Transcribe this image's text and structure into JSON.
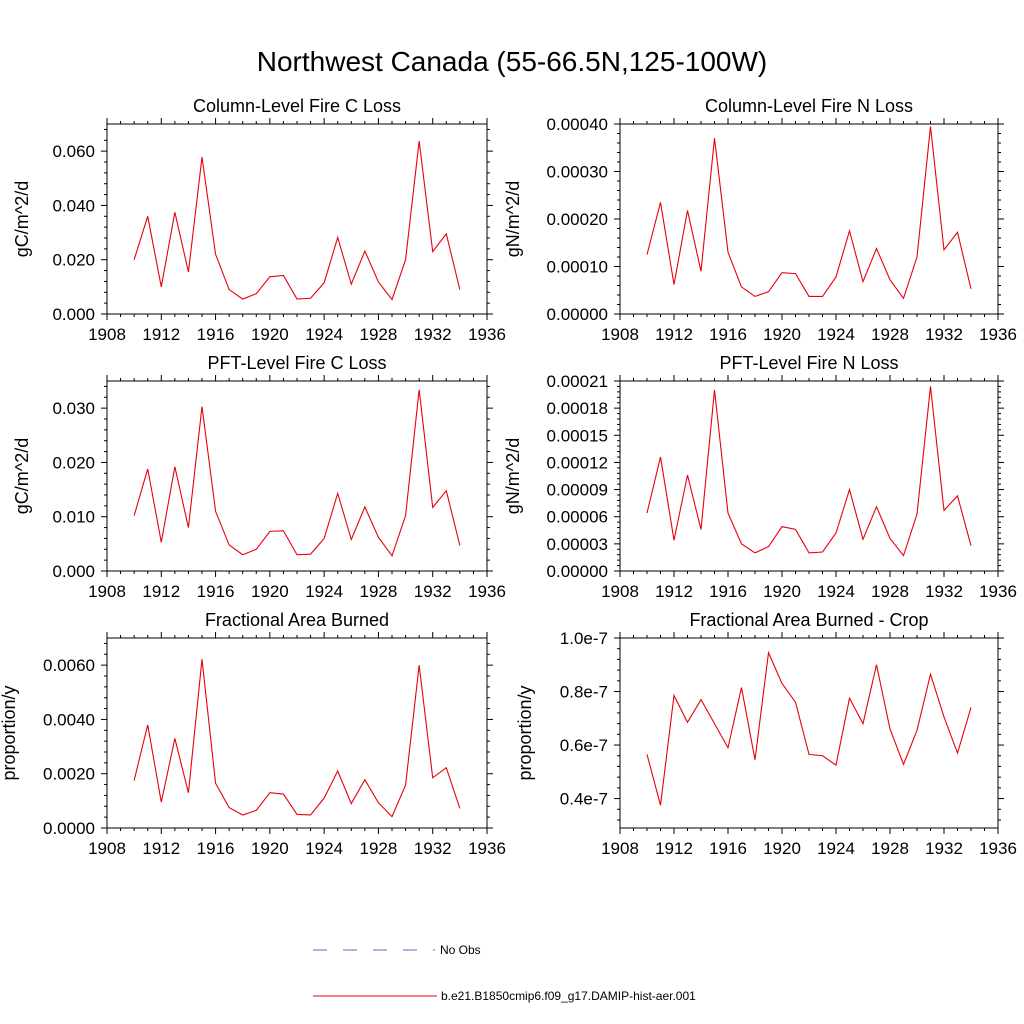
{
  "figure": {
    "title": "Northwest Canada (55-66.5N,125-100W)"
  },
  "legend": {
    "entries": [
      {
        "label": "No Obs",
        "style": "dashed",
        "color": "#5a6ac0"
      },
      {
        "label": "b.e21.B1850cmip6.f09_g17.DAMIP-hist-aer.001",
        "style": "solid",
        "color": "#e8000b"
      }
    ]
  },
  "chart_data": [
    {
      "type": "line",
      "title": "Column-Level Fire C Loss",
      "ylabel": "gC/m^2/d",
      "xlim": [
        1908,
        1936
      ],
      "ylim": [
        0,
        0.07
      ],
      "yticks": [
        0.0,
        0.02,
        0.04,
        0.06
      ],
      "ytick_labels": [
        "0.000",
        "0.020",
        "0.040",
        "0.060"
      ],
      "xticks": [
        1908,
        1912,
        1916,
        1920,
        1924,
        1928,
        1932,
        1936
      ],
      "xtick_labels": [
        "1908",
        "1912",
        "1916",
        "1920",
        "1924",
        "1928",
        "1932",
        "1936"
      ],
      "line_color": "#e8000b",
      "x": [
        1910,
        1911,
        1912,
        1913,
        1914,
        1915,
        1916,
        1917,
        1918,
        1919,
        1920,
        1921,
        1922,
        1923,
        1924,
        1925,
        1926,
        1927,
        1928,
        1929,
        1930,
        1931,
        1932,
        1933,
        1934
      ],
      "values": [
        0.02,
        0.036,
        0.01,
        0.0375,
        0.0155,
        0.0578,
        0.022,
        0.009,
        0.0055,
        0.0075,
        0.0137,
        0.0142,
        0.0055,
        0.0058,
        0.0115,
        0.0282,
        0.011,
        0.0232,
        0.0118,
        0.0053,
        0.02,
        0.0637,
        0.023,
        0.0295,
        0.009
      ]
    },
    {
      "type": "line",
      "title": "Column-Level Fire N Loss",
      "ylabel": "gN/m^2/d",
      "xlim": [
        1908,
        1936
      ],
      "ylim": [
        0,
        0.0004
      ],
      "yticks": [
        0.0,
        0.0001,
        0.0002,
        0.0003,
        0.0004
      ],
      "ytick_labels": [
        "0.00000",
        "0.00010",
        "0.00020",
        "0.00030",
        "0.00040"
      ],
      "xticks": [
        1908,
        1912,
        1916,
        1920,
        1924,
        1928,
        1932,
        1936
      ],
      "xtick_labels": [
        "1908",
        "1912",
        "1916",
        "1920",
        "1924",
        "1928",
        "1932",
        "1936"
      ],
      "line_color": "#e8000b",
      "x": [
        1910,
        1911,
        1912,
        1913,
        1914,
        1915,
        1916,
        1917,
        1918,
        1919,
        1920,
        1921,
        1922,
        1923,
        1924,
        1925,
        1926,
        1927,
        1928,
        1929,
        1930,
        1931,
        1932,
        1933,
        1934
      ],
      "values": [
        0.000125,
        0.000235,
        6.2e-05,
        0.000218,
        9e-05,
        0.00037,
        0.00013,
        5.7e-05,
        3.7e-05,
        4.7e-05,
        8.7e-05,
        8.5e-05,
        3.7e-05,
        3.7e-05,
        7.8e-05,
        0.000175,
        6.8e-05,
        0.000138,
        7.2e-05,
        3.3e-05,
        0.00012,
        0.000395,
        0.000135,
        0.000172,
        5.3e-05
      ]
    },
    {
      "type": "line",
      "title": "PFT-Level Fire C Loss",
      "ylabel": "gC/m^2/d",
      "xlim": [
        1908,
        1936
      ],
      "ylim": [
        0,
        0.035
      ],
      "yticks": [
        0.0,
        0.01,
        0.02,
        0.03
      ],
      "ytick_labels": [
        "0.000",
        "0.010",
        "0.020",
        "0.030"
      ],
      "xticks": [
        1908,
        1912,
        1916,
        1920,
        1924,
        1928,
        1932,
        1936
      ],
      "xtick_labels": [
        "1908",
        "1912",
        "1916",
        "1920",
        "1924",
        "1928",
        "1932",
        "1936"
      ],
      "line_color": "#e8000b",
      "x": [
        1910,
        1911,
        1912,
        1913,
        1914,
        1915,
        1916,
        1917,
        1918,
        1919,
        1920,
        1921,
        1922,
        1923,
        1924,
        1925,
        1926,
        1927,
        1928,
        1929,
        1930,
        1931,
        1932,
        1933,
        1934
      ],
      "values": [
        0.0102,
        0.0188,
        0.0053,
        0.0192,
        0.008,
        0.0303,
        0.011,
        0.0048,
        0.003,
        0.004,
        0.0073,
        0.0074,
        0.003,
        0.0031,
        0.006,
        0.0143,
        0.0058,
        0.0118,
        0.0062,
        0.0028,
        0.0102,
        0.0334,
        0.0117,
        0.0148,
        0.0047
      ]
    },
    {
      "type": "line",
      "title": "PFT-Level Fire N Loss",
      "ylabel": "gN/m^2/d",
      "xlim": [
        1908,
        1936
      ],
      "ylim": [
        0,
        0.00021
      ],
      "yticks": [
        0.0,
        3e-05,
        6e-05,
        9e-05,
        0.00012,
        0.00015,
        0.00018,
        0.00021
      ],
      "ytick_labels": [
        "0.00000",
        "0.00003",
        "0.00006",
        "0.00009",
        "0.00012",
        "0.00015",
        "0.00018",
        "0.00021"
      ],
      "xticks": [
        1908,
        1912,
        1916,
        1920,
        1924,
        1928,
        1932,
        1936
      ],
      "xtick_labels": [
        "1908",
        "1912",
        "1916",
        "1920",
        "1924",
        "1928",
        "1932",
        "1936"
      ],
      "line_color": "#e8000b",
      "x": [
        1910,
        1911,
        1912,
        1913,
        1914,
        1915,
        1916,
        1917,
        1918,
        1919,
        1920,
        1921,
        1922,
        1923,
        1924,
        1925,
        1926,
        1927,
        1928,
        1929,
        1930,
        1931,
        1932,
        1933,
        1934
      ],
      "values": [
        6.4e-05,
        0.000126,
        3.4e-05,
        0.000106,
        4.6e-05,
        0.0002,
        6.4e-05,
        3e-05,
        2e-05,
        2.7e-05,
        4.9e-05,
        4.6e-05,
        2e-05,
        2.1e-05,
        4.2e-05,
        9e-05,
        3.5e-05,
        7.1e-05,
        3.6e-05,
        1.7e-05,
        6.3e-05,
        0.000204,
        6.7e-05,
        8.3e-05,
        2.8e-05
      ]
    },
    {
      "type": "line",
      "title": "Fractional Area Burned",
      "ylabel": "proportion/y",
      "xlim": [
        1908,
        1936
      ],
      "ylim": [
        0,
        0.007
      ],
      "yticks": [
        0.0,
        0.002,
        0.004,
        0.006
      ],
      "ytick_labels": [
        "0.0000",
        "0.0020",
        "0.0040",
        "0.0060"
      ],
      "xticks": [
        1908,
        1912,
        1916,
        1920,
        1924,
        1928,
        1932,
        1936
      ],
      "xtick_labels": [
        "1908",
        "1912",
        "1916",
        "1920",
        "1924",
        "1928",
        "1932",
        "1936"
      ],
      "line_color": "#e8000b",
      "x": [
        1910,
        1911,
        1912,
        1913,
        1914,
        1915,
        1916,
        1917,
        1918,
        1919,
        1920,
        1921,
        1922,
        1923,
        1924,
        1925,
        1926,
        1927,
        1928,
        1929,
        1930,
        1931,
        1932,
        1933,
        1934
      ],
      "values": [
        0.00175,
        0.0038,
        0.00095,
        0.0033,
        0.0013,
        0.00622,
        0.00165,
        0.00075,
        0.00048,
        0.00065,
        0.0013,
        0.00125,
        0.0005,
        0.00048,
        0.0011,
        0.0021,
        0.0009,
        0.00178,
        0.00093,
        0.00042,
        0.00158,
        0.006,
        0.00185,
        0.00222,
        0.00072
      ]
    },
    {
      "type": "line",
      "title": "Fractional Area Burned - Crop",
      "ylabel": "proportion/y",
      "xlim": [
        1908,
        1936
      ],
      "ylim": [
        0.29,
        1.0
      ],
      "y_multiplier": "1e-7",
      "yticks": [
        0.4,
        0.6,
        0.8,
        1.0
      ],
      "ytick_labels": [
        "0.4e-7",
        "0.6e-7",
        "0.8e-7",
        "1.0e-7"
      ],
      "xticks": [
        1908,
        1912,
        1916,
        1920,
        1924,
        1928,
        1932,
        1936
      ],
      "xtick_labels": [
        "1908",
        "1912",
        "1916",
        "1920",
        "1924",
        "1928",
        "1932",
        "1936"
      ],
      "line_color": "#e8000b",
      "x": [
        1910,
        1911,
        1912,
        1913,
        1914,
        1915,
        1916,
        1917,
        1918,
        1919,
        1920,
        1921,
        1922,
        1923,
        1924,
        1925,
        1926,
        1927,
        1928,
        1929,
        1930,
        1931,
        1932,
        1933,
        1934
      ],
      "values": [
        0.565,
        0.375,
        0.785,
        0.685,
        0.77,
        0.68,
        0.59,
        0.815,
        0.545,
        0.945,
        0.83,
        0.76,
        0.565,
        0.56,
        0.525,
        0.775,
        0.68,
        0.9,
        0.66,
        0.528,
        0.655,
        0.865,
        0.705,
        0.57,
        0.74
      ]
    }
  ]
}
